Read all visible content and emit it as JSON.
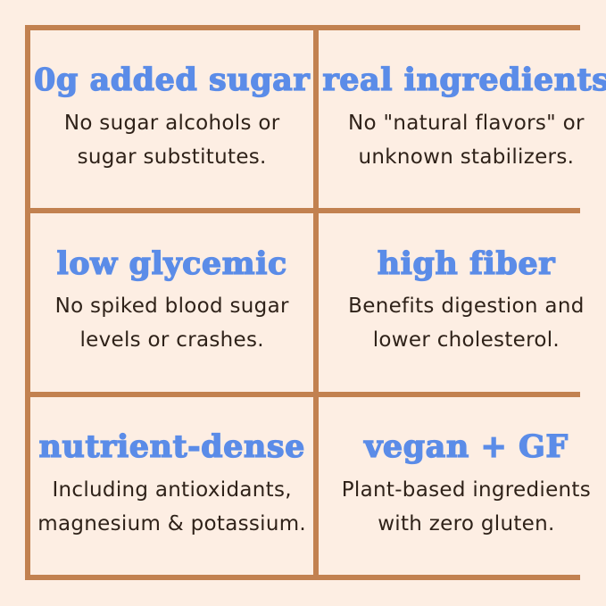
{
  "theme": {
    "background": "#fdeee3",
    "border_color": "#c28150",
    "heading_color": "#5b8ce8",
    "body_color": "#2f2219"
  },
  "cells": [
    {
      "heading": "0g added sugar",
      "body_line1": "No sugar alcohols or",
      "body_line2": "sugar substitutes."
    },
    {
      "heading": "real ingredients",
      "body_line1": "No \"natural flavors\" or",
      "body_line2": "unknown stabilizers."
    },
    {
      "heading": "low glycemic",
      "body_line1": "No spiked blood sugar",
      "body_line2": "levels or crashes."
    },
    {
      "heading": "high fiber",
      "body_line1": "Benefits digestion and",
      "body_line2": "lower cholesterol."
    },
    {
      "heading": "nutrient-dense",
      "body_line1": "Including antioxidants,",
      "body_line2": "magnesium & potassium."
    },
    {
      "heading": "vegan + GF",
      "body_line1": "Plant-based ingredients",
      "body_line2": "with zero gluten."
    }
  ]
}
